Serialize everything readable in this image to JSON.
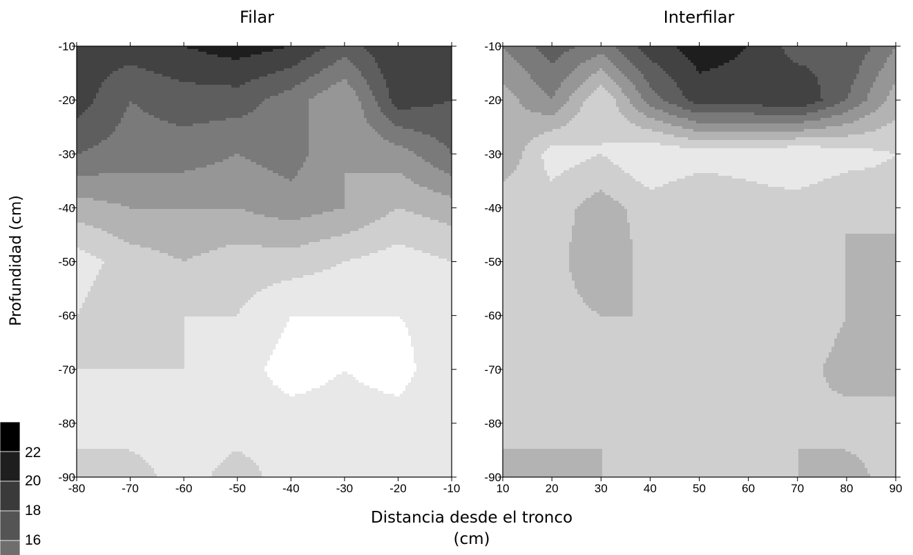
{
  "chart_data": [
    {
      "type": "contour",
      "title": "Filar",
      "x": [
        -80,
        -70,
        -60,
        -50,
        -40,
        -30,
        -20,
        -10
      ],
      "y": [
        -10,
        -20,
        -30,
        -40,
        -50,
        -60,
        -70,
        -80,
        -90
      ],
      "xlim": [
        -80,
        -10
      ],
      "ylim": [
        -90,
        -10
      ],
      "xticks": [
        "-80",
        "-70",
        "-60",
        "-50",
        "-40",
        "-30",
        "-20",
        "-10"
      ],
      "yticks": [
        "-10",
        "-20",
        "-30",
        "-40",
        "-50",
        "-60",
        "-70",
        "-80",
        "-90"
      ],
      "z": [
        [
          21,
          21,
          22,
          23,
          22,
          19,
          22,
          21
        ],
        [
          21,
          18,
          19,
          19,
          17,
          14,
          21,
          20
        ],
        [
          18,
          17,
          17,
          16,
          17,
          14,
          15,
          18
        ],
        [
          13,
          14,
          14,
          14,
          15,
          14,
          12,
          13
        ],
        [
          9,
          11,
          12,
          11,
          11,
          10,
          9,
          10
        ],
        [
          10,
          12,
          10,
          10,
          8,
          8,
          8,
          9
        ],
        [
          10,
          10,
          10,
          9,
          7,
          8,
          7,
          10
        ],
        [
          10,
          9,
          9,
          9,
          9,
          9,
          9,
          10
        ],
        [
          10,
          11,
          9,
          11,
          9,
          10,
          10,
          10
        ]
      ]
    },
    {
      "type": "contour",
      "title": "Interfilar",
      "x": [
        10,
        20,
        30,
        40,
        50,
        60,
        70,
        80,
        90
      ],
      "y": [
        -10,
        -20,
        -30,
        -40,
        -50,
        -60,
        -70,
        -80,
        -90
      ],
      "xlim": [
        10,
        90
      ],
      "ylim": [
        -90,
        -10
      ],
      "xticks": [
        "10",
        "20",
        "30",
        "40",
        "50",
        "60",
        "70",
        "80",
        "90"
      ],
      "yticks": [
        "-10",
        "-20",
        "-30",
        "-40",
        "-50",
        "-60",
        "-70",
        "-80",
        "-90"
      ],
      "z": [
        [
          16,
          19,
          17,
          21,
          23,
          22,
          19,
          20,
          16
        ],
        [
          13,
          16,
          10,
          17,
          21,
          21,
          22,
          18,
          13
        ],
        [
          14,
          9,
          10,
          8,
          9,
          9,
          8,
          9,
          10
        ],
        [
          10,
          11,
          13,
          11,
          12,
          11,
          11,
          12,
          11
        ],
        [
          10,
          11,
          14,
          11,
          11,
          12,
          11,
          12,
          13
        ],
        [
          10,
          11,
          12,
          12,
          10,
          11,
          10,
          12,
          12
        ],
        [
          12,
          11,
          11,
          11,
          11,
          12,
          11,
          13,
          13
        ],
        [
          12,
          11,
          12,
          10,
          10,
          11,
          12,
          11,
          11
        ],
        [
          12,
          13,
          12,
          11,
          11,
          12,
          12,
          13,
          11
        ]
      ]
    }
  ],
  "shared": {
    "xlabel_line1": "Distancia desde el tronco",
    "xlabel_line2": "(cm)",
    "ylabel": "Profundidad (cm)"
  },
  "colorbar": {
    "ticks": [
      "22",
      "20",
      "18",
      "16"
    ],
    "levels": [
      8,
      10,
      12,
      14,
      16,
      18,
      20,
      22
    ],
    "colors": [
      "#ffffff",
      "#e8e8e8",
      "#cfcfcf",
      "#b3b3b3",
      "#969696",
      "#7a7a7a",
      "#5e5e5e",
      "#424242",
      "#1e1e1e"
    ]
  }
}
